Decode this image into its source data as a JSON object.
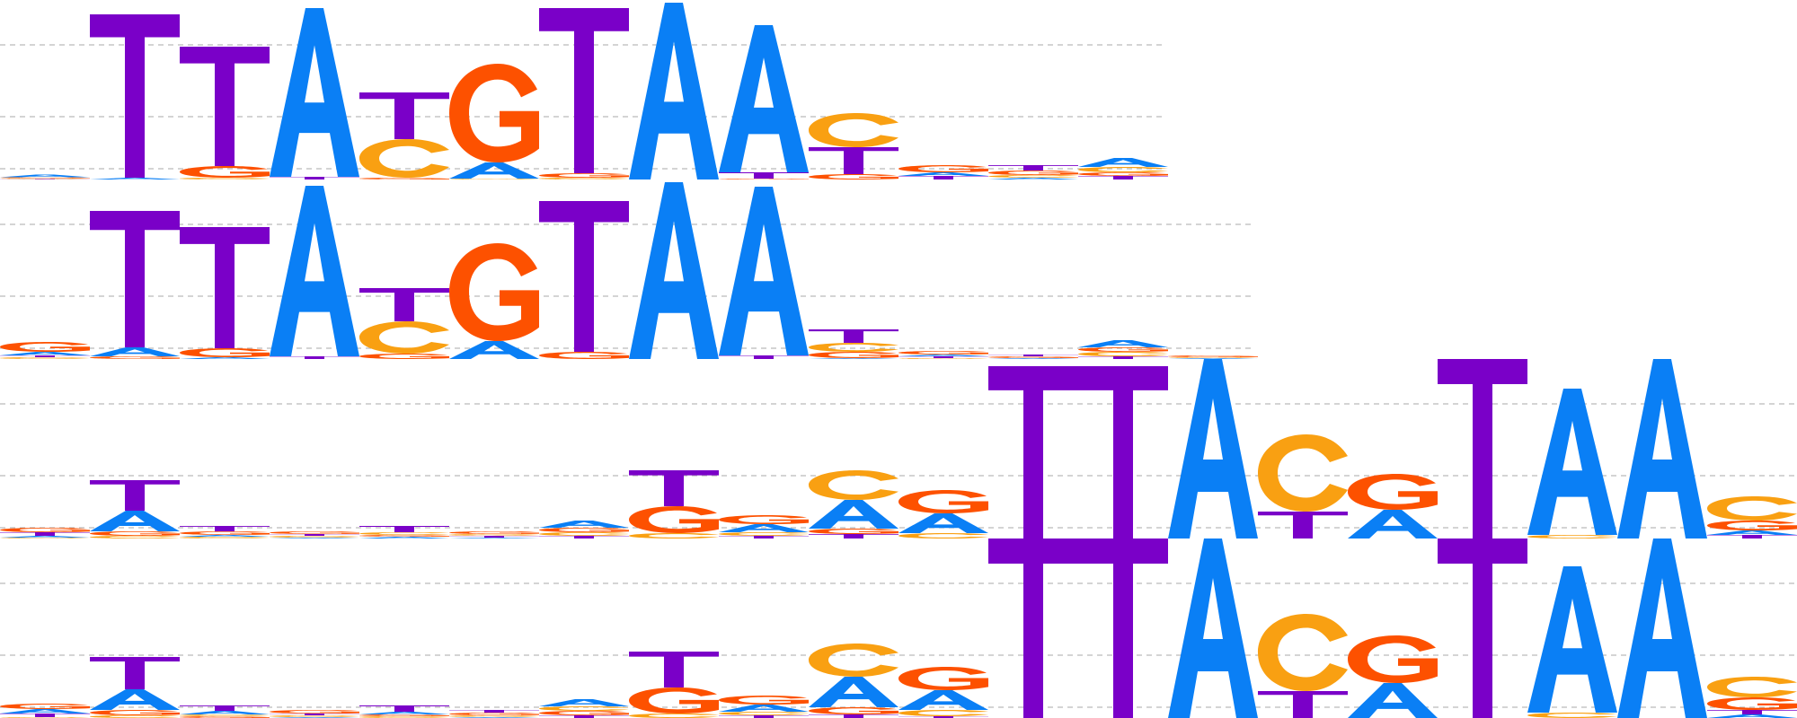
{
  "colors": {
    "A": "#0A7FF5",
    "C": "#F9A012",
    "G": "#FD5100",
    "T": "#7A00C8",
    "gridline": "#BBBBBB"
  },
  "logos": [
    {
      "name": "logo-row-1",
      "columns": [
        [
          [
            "A",
            0.03
          ],
          [
            "C",
            0.01
          ],
          [
            "G",
            0.01
          ],
          [
            "T",
            0.005
          ]
        ],
        [
          [
            "T",
            1.82
          ],
          [
            "A",
            0.02
          ]
        ],
        [
          [
            "T",
            1.33
          ],
          [
            "G",
            0.13
          ],
          [
            "C",
            0.02
          ]
        ],
        [
          [
            "A",
            1.88
          ],
          [
            "T",
            0.03
          ]
        ],
        [
          [
            "T",
            0.52
          ],
          [
            "C",
            0.43
          ],
          [
            "G",
            0.02
          ]
        ],
        [
          [
            "G",
            1.1
          ],
          [
            "A",
            0.18
          ],
          [
            "C",
            0.01
          ]
        ],
        [
          [
            "T",
            1.84
          ],
          [
            "G",
            0.05
          ],
          [
            "C",
            0.02
          ]
        ],
        [
          [
            "A",
            1.97
          ]
        ],
        [
          [
            "A",
            1.64
          ],
          [
            "T",
            0.07
          ],
          [
            "G",
            0.01
          ]
        ],
        [
          [
            "C",
            0.38
          ],
          [
            "T",
            0.3
          ],
          [
            "G",
            0.06
          ]
        ],
        [
          [
            "G",
            0.08
          ],
          [
            "T",
            0.04
          ],
          [
            "A",
            0.04
          ]
        ],
        [
          [
            "T",
            0.06
          ],
          [
            "G",
            0.05
          ],
          [
            "C",
            0.03
          ],
          [
            "A",
            0.02
          ]
        ],
        [
          [
            "A",
            0.1
          ],
          [
            "C",
            0.06
          ],
          [
            "T",
            0.04
          ],
          [
            "G",
            0.04
          ]
        ]
      ]
    },
    {
      "name": "logo-row-2",
      "columns": [
        [
          [
            "G",
            0.11
          ],
          [
            "A",
            0.04
          ],
          [
            "C",
            0.02
          ],
          [
            "T",
            0.02
          ]
        ],
        [
          [
            "T",
            1.52
          ],
          [
            "A",
            0.1
          ],
          [
            "G",
            0.03
          ]
        ],
        [
          [
            "T",
            1.35
          ],
          [
            "G",
            0.1
          ],
          [
            "A",
            0.02
          ]
        ],
        [
          [
            "A",
            1.9
          ],
          [
            "T",
            0.03
          ]
        ],
        [
          [
            "T",
            0.37
          ],
          [
            "C",
            0.36
          ],
          [
            "G",
            0.06
          ]
        ],
        [
          [
            "G",
            1.09
          ],
          [
            "A",
            0.2
          ]
        ],
        [
          [
            "T",
            1.68
          ],
          [
            "G",
            0.08
          ]
        ],
        [
          [
            "A",
            1.97
          ]
        ],
        [
          [
            "A",
            1.88
          ],
          [
            "T",
            0.04
          ]
        ],
        [
          [
            "T",
            0.15
          ],
          [
            "C",
            0.1
          ],
          [
            "G",
            0.07
          ],
          [
            "A",
            0.01
          ]
        ],
        [
          [
            "G",
            0.04
          ],
          [
            "T",
            0.02
          ],
          [
            "A",
            0.02
          ],
          [
            "C",
            0.01
          ]
        ],
        [
          [
            "G",
            0.02
          ],
          [
            "T",
            0.02
          ],
          [
            "A",
            0.01
          ]
        ],
        [
          [
            "A",
            0.08
          ],
          [
            "C",
            0.05
          ],
          [
            "G",
            0.05
          ],
          [
            "T",
            0.03
          ]
        ],
        [
          [
            "G",
            0.02
          ],
          [
            "A",
            0.01
          ],
          [
            "C",
            0.01
          ]
        ]
      ]
    },
    {
      "name": "logo-row-3",
      "columns": [
        [
          [
            "G",
            0.05
          ],
          [
            "T",
            0.04
          ],
          [
            "A",
            0.02
          ],
          [
            "C",
            0.01
          ]
        ],
        [
          [
            "T",
            0.34
          ],
          [
            "A",
            0.23
          ],
          [
            "G",
            0.05
          ],
          [
            "C",
            0.03
          ]
        ],
        [
          [
            "T",
            0.06
          ],
          [
            "G",
            0.04
          ],
          [
            "C",
            0.02
          ],
          [
            "A",
            0.02
          ]
        ],
        [
          [
            "G",
            0.03
          ],
          [
            "C",
            0.02
          ],
          [
            "T",
            0.02
          ],
          [
            "A",
            0.01
          ]
        ],
        [
          [
            "T",
            0.07
          ],
          [
            "C",
            0.03
          ],
          [
            "A",
            0.02
          ],
          [
            "G",
            0.02
          ]
        ],
        [
          [
            "G",
            0.03
          ],
          [
            "T",
            0.02
          ],
          [
            "C",
            0.02
          ],
          [
            "A",
            0.01
          ]
        ],
        [
          [
            "A",
            0.08
          ],
          [
            "G",
            0.05
          ],
          [
            "C",
            0.04
          ],
          [
            "T",
            0.03
          ]
        ],
        [
          [
            "T",
            0.4
          ],
          [
            "G",
            0.3
          ],
          [
            "C",
            0.06
          ]
        ],
        [
          [
            "G",
            0.1
          ],
          [
            "A",
            0.09
          ],
          [
            "C",
            0.04
          ],
          [
            "T",
            0.03
          ]
        ],
        [
          [
            "C",
            0.33
          ],
          [
            "A",
            0.32
          ],
          [
            "G",
            0.06
          ],
          [
            "T",
            0.05
          ]
        ],
        [
          [
            "A",
            0.22
          ],
          [
            "G",
            0.26
          ],
          [
            "C",
            0.06
          ]
        ],
        [
          [
            "T",
            1.92
          ]
        ],
        [
          [
            "T",
            1.92
          ]
        ],
        [
          [
            "A",
            2.0
          ]
        ],
        [
          [
            "C",
            0.86
          ],
          [
            "T",
            0.3
          ]
        ],
        [
          [
            "G",
            0.4
          ],
          [
            "A",
            0.32
          ]
        ],
        [
          [
            "T",
            2.0
          ]
        ],
        [
          [
            "A",
            1.63
          ],
          [
            "C",
            0.04
          ]
        ],
        [
          [
            "A",
            2.0
          ]
        ],
        [
          [
            "C",
            0.27
          ],
          [
            "G",
            0.11
          ],
          [
            "A",
            0.05
          ],
          [
            "T",
            0.04
          ]
        ]
      ]
    },
    {
      "name": "logo-row-4",
      "columns": [
        [
          [
            "G",
            0.06
          ],
          [
            "A",
            0.05
          ],
          [
            "T",
            0.04
          ],
          [
            "C",
            0.01
          ]
        ],
        [
          [
            "T",
            0.36
          ],
          [
            "A",
            0.23
          ],
          [
            "G",
            0.06
          ],
          [
            "C",
            0.03
          ]
        ],
        [
          [
            "T",
            0.06
          ],
          [
            "A",
            0.04
          ],
          [
            "G",
            0.02
          ],
          [
            "C",
            0.02
          ]
        ],
        [
          [
            "G",
            0.04
          ],
          [
            "C",
            0.02
          ],
          [
            "T",
            0.02
          ],
          [
            "A",
            0.01
          ]
        ],
        [
          [
            "T",
            0.07
          ],
          [
            "A",
            0.03
          ],
          [
            "C",
            0.02
          ],
          [
            "G",
            0.02
          ]
        ],
        [
          [
            "G",
            0.03
          ],
          [
            "T",
            0.03
          ],
          [
            "C",
            0.02
          ],
          [
            "A",
            0.01
          ]
        ],
        [
          [
            "A",
            0.08
          ],
          [
            "G",
            0.05
          ],
          [
            "C",
            0.05
          ],
          [
            "T",
            0.03
          ]
        ],
        [
          [
            "T",
            0.4
          ],
          [
            "G",
            0.29
          ],
          [
            "C",
            0.05
          ]
        ],
        [
          [
            "G",
            0.1
          ],
          [
            "A",
            0.08
          ],
          [
            "C",
            0.04
          ],
          [
            "T",
            0.03
          ]
        ],
        [
          [
            "C",
            0.37
          ],
          [
            "A",
            0.34
          ],
          [
            "G",
            0.08
          ],
          [
            "T",
            0.04
          ]
        ],
        [
          [
            "A",
            0.22
          ],
          [
            "G",
            0.26
          ],
          [
            "C",
            0.07
          ],
          [
            "T",
            0.02
          ]
        ],
        [
          [
            "T",
            2.0
          ]
        ],
        [
          [
            "T",
            2.0
          ]
        ],
        [
          [
            "A",
            2.0
          ]
        ],
        [
          [
            "C",
            0.86
          ],
          [
            "T",
            0.3
          ]
        ],
        [
          [
            "G",
            0.53
          ],
          [
            "A",
            0.39
          ]
        ],
        [
          [
            "T",
            2.0
          ]
        ],
        [
          [
            "A",
            1.63
          ],
          [
            "C",
            0.06
          ]
        ],
        [
          [
            "A",
            2.0
          ]
        ],
        [
          [
            "C",
            0.23
          ],
          [
            "G",
            0.14
          ],
          [
            "T",
            0.05
          ],
          [
            "A",
            0.04
          ]
        ]
      ]
    }
  ]
}
